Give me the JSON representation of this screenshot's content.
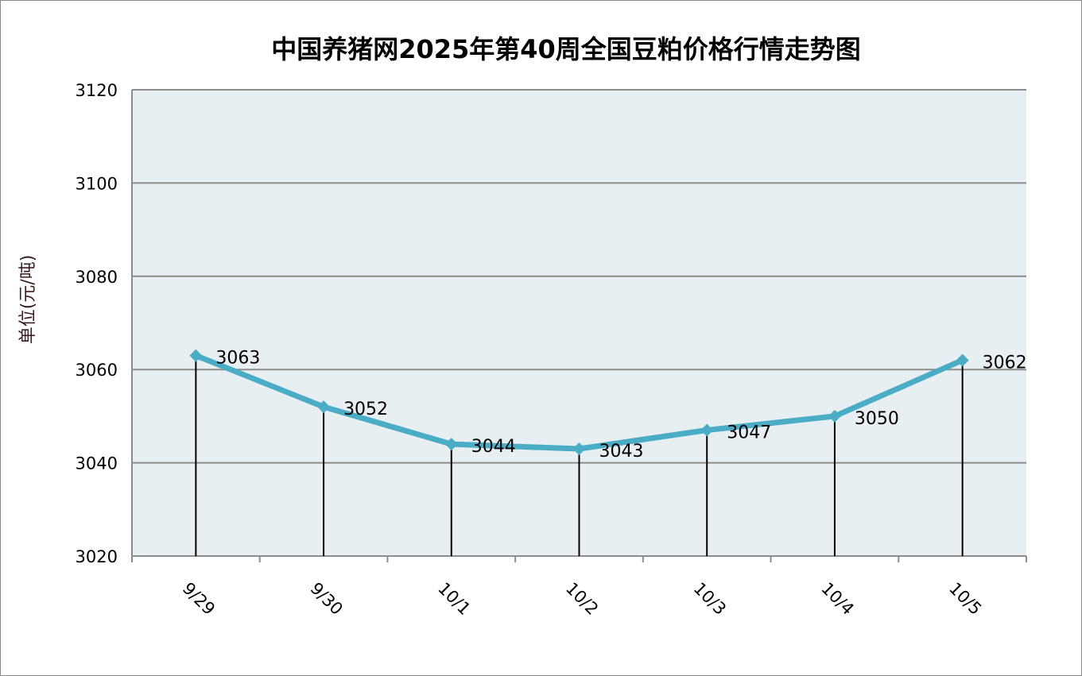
{
  "chart_data": {
    "type": "line",
    "title": "中国养猪网2025年第40周全国豆粕价格行情走势图",
    "xlabel": "",
    "ylabel": "单位(元/吨)",
    "categories": [
      "9/29",
      "9/30",
      "10/1",
      "10/2",
      "10/3",
      "10/4",
      "10/5"
    ],
    "series": [
      {
        "name": "豆粕价格",
        "values": [
          3063,
          3052,
          3044,
          3043,
          3047,
          3050,
          3062
        ],
        "color": "#4bacc6"
      }
    ],
    "ylim": [
      3020,
      3120
    ],
    "yticks": [
      3020,
      3040,
      3060,
      3080,
      3100,
      3120
    ],
    "grid": true,
    "legend": "none",
    "data_labels": true,
    "plot_background": "#e8eff3"
  }
}
